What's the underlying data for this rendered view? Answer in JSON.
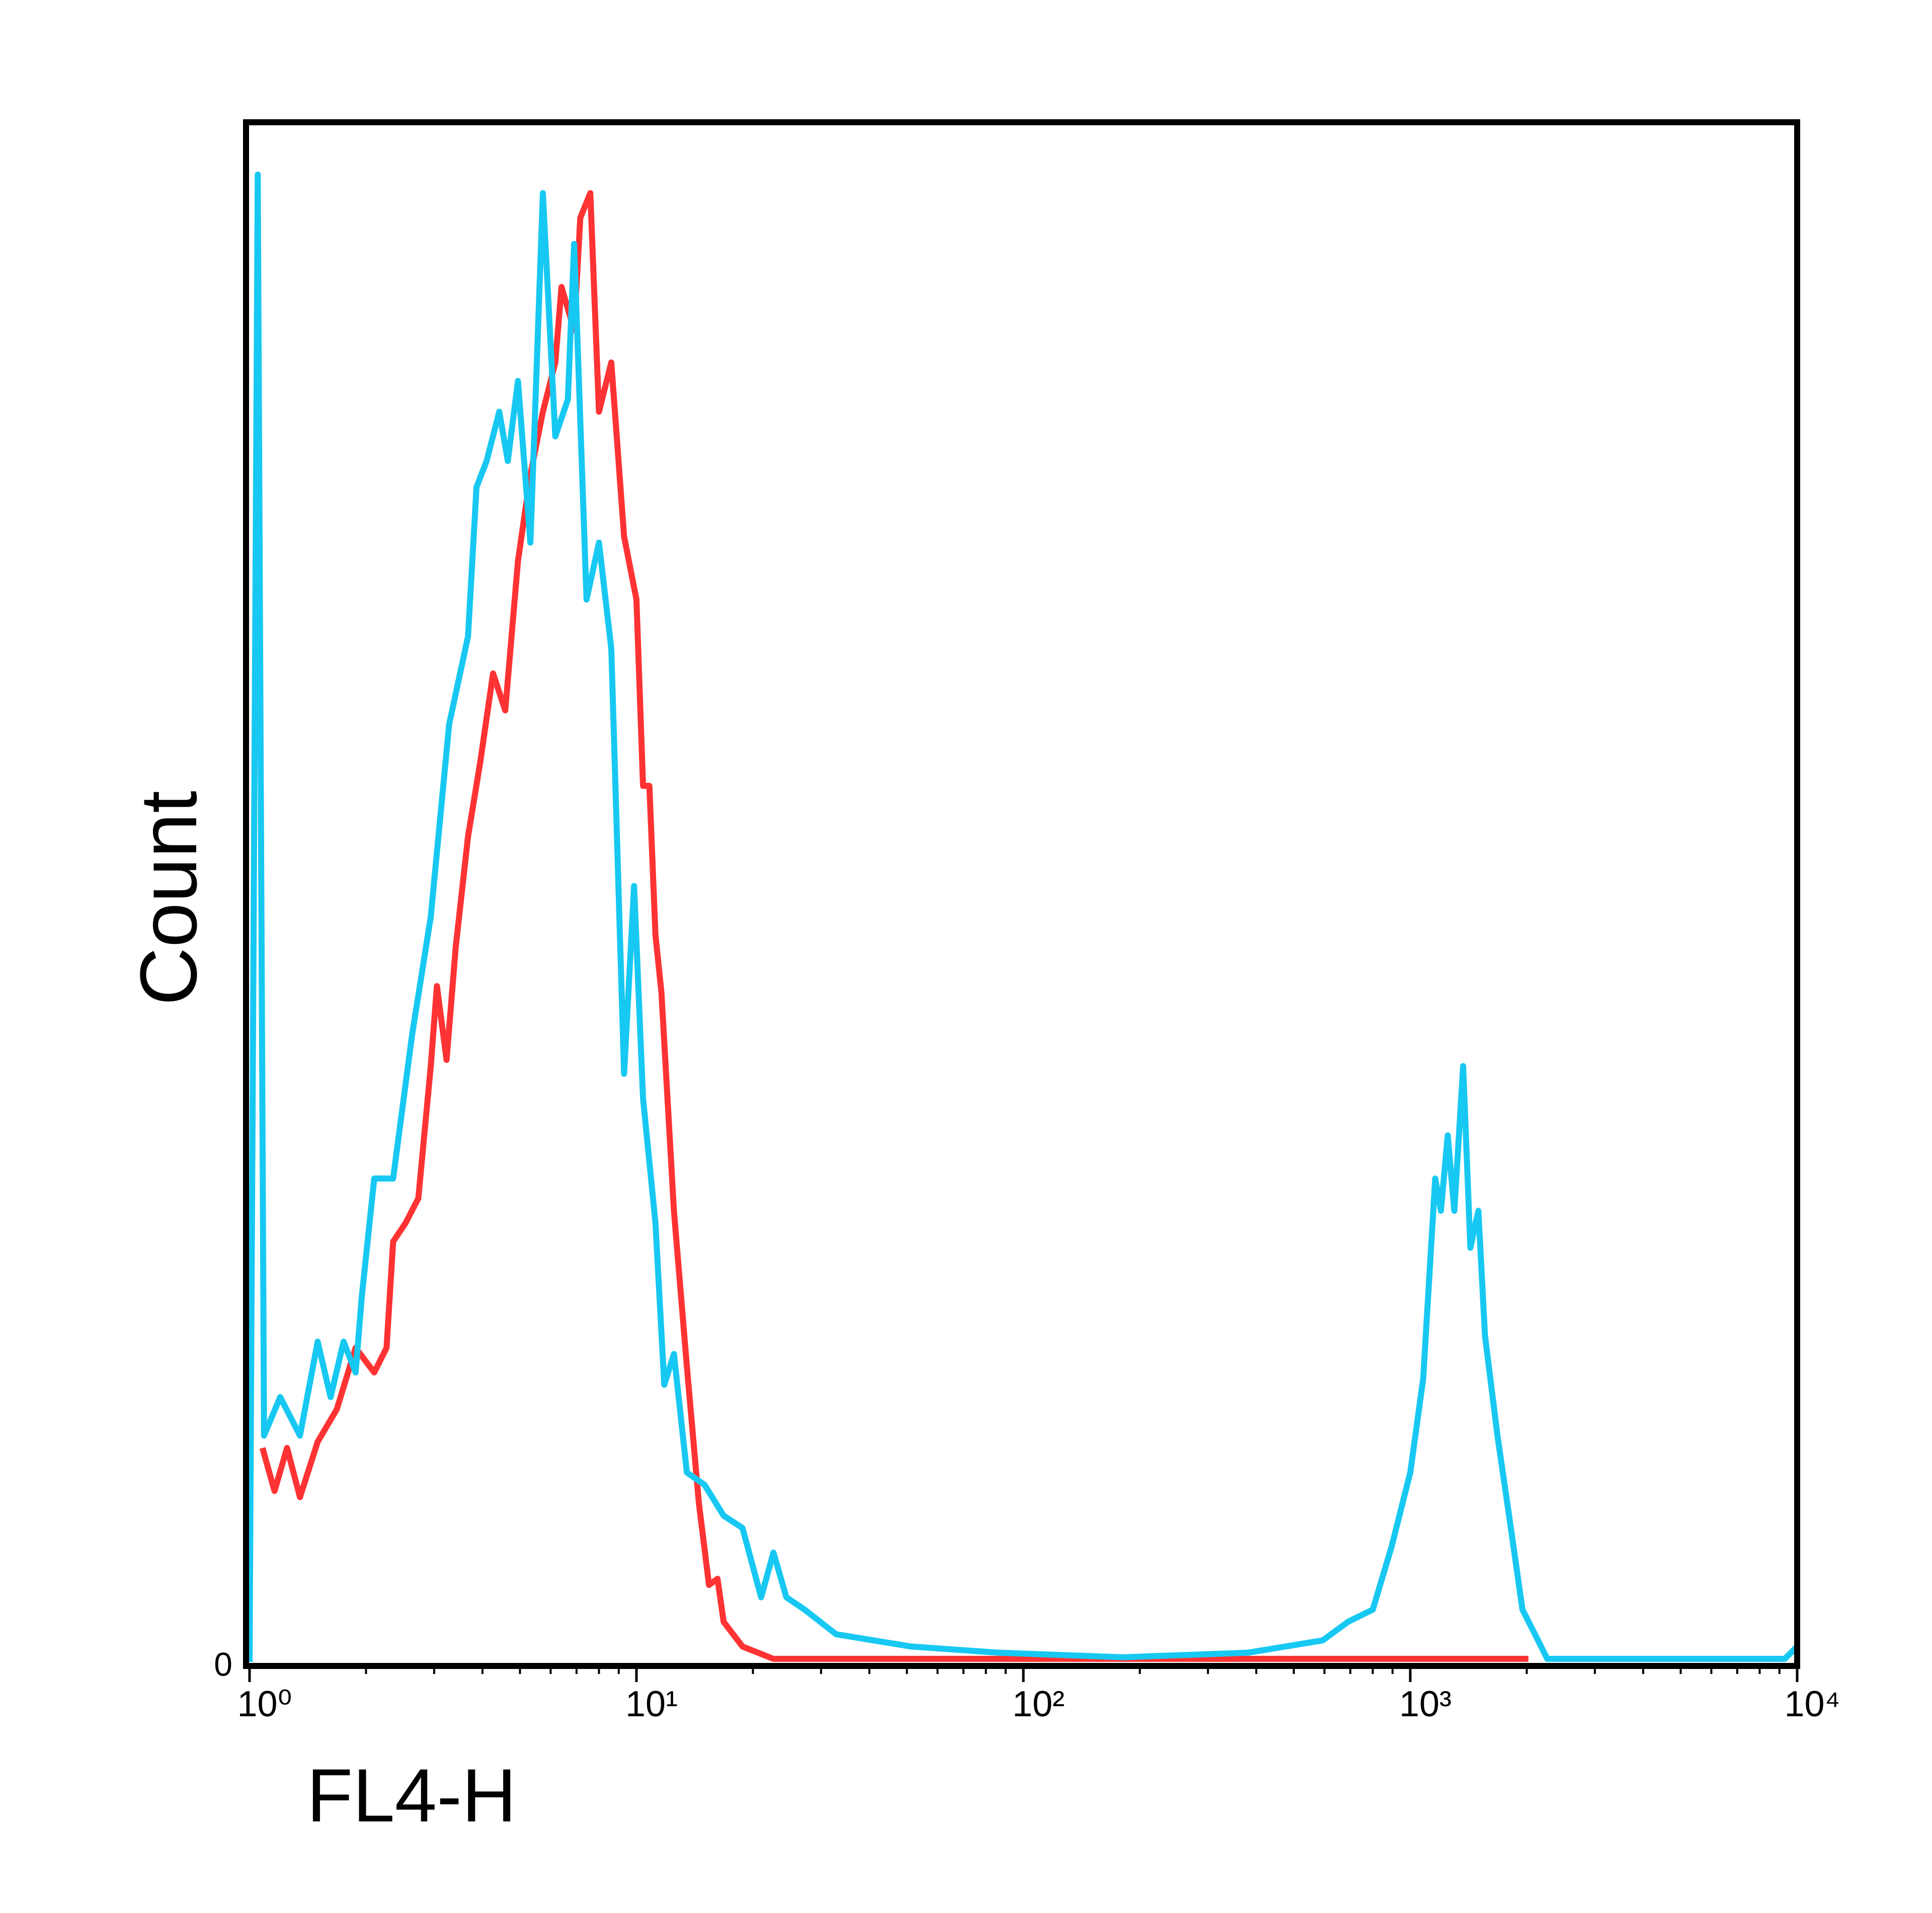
{
  "chart_data": {
    "type": "line",
    "x_label": "FL4-H",
    "y_label": "Count",
    "xscale": "log",
    "xlim": [
      1,
      10000
    ],
    "xticks": [
      {
        "value": 1,
        "label": "10⁰"
      },
      {
        "value": 10,
        "label": "10¹"
      },
      {
        "value": 100,
        "label": "10²"
      },
      {
        "value": 1000,
        "label": "10³"
      },
      {
        "value": 10000,
        "label": "10⁴"
      }
    ],
    "xminorticks": [
      2,
      3,
      4,
      5,
      6,
      7,
      8,
      9,
      20,
      30,
      40,
      50,
      60,
      70,
      80,
      90,
      200,
      300,
      400,
      500,
      600,
      700,
      800,
      900,
      2000,
      3000,
      4000,
      5000,
      6000,
      7000,
      8000,
      9000
    ],
    "ylim": [
      0,
      100
    ],
    "yticks": [
      0
    ],
    "series": [
      {
        "color": "#ff3333",
        "x": [
          1.08,
          1.16,
          1.25,
          1.35,
          1.5,
          1.68,
          1.88,
          2.1,
          2.26,
          2.35,
          2.53,
          2.73,
          2.94,
          3.05,
          3.23,
          3.41,
          3.67,
          3.95,
          4.26,
          4.58,
          4.94,
          5.32,
          5.73,
          6.17,
          6.4,
          6.9,
          7.16,
          7.6,
          8.0,
          8.61,
          9.29,
          10.0,
          10.4,
          10.8,
          11.2,
          11.6,
          12.5,
          13.5,
          14.5,
          15.4,
          16.2,
          16.8,
          18.8,
          22.6,
          41.0,
          2020
        ],
        "values": [
          13.9,
          11.1,
          13.9,
          10.7,
          14.3,
          16.4,
          20.4,
          18.8,
          20.4,
          27.3,
          28.5,
          30.1,
          38.7,
          43.9,
          39.1,
          46.4,
          53.6,
          58.5,
          64.2,
          61.8,
          71.5,
          77.1,
          81.2,
          84.4,
          89.3,
          86.5,
          93.8,
          95.4,
          81.2,
          84.4,
          73.1,
          69.0,
          56.9,
          56.9,
          47.2,
          43.5,
          29.3,
          19.2,
          10.3,
          5.0,
          5.4,
          2.6,
          1.0,
          0.2,
          0.2,
          0.2
        ]
      },
      {
        "color": "#17c8f2",
        "x": [
          1,
          1.05,
          1.09,
          1.2,
          1.35,
          1.5,
          1.62,
          1.75,
          1.88,
          1.95,
          2.1,
          2.35,
          2.63,
          2.94,
          3.28,
          3.67,
          3.86,
          4.1,
          4.42,
          4.65,
          4.94,
          5.32,
          5.73,
          6.17,
          6.65,
          6.9,
          7.43,
          8.0,
          8.61,
          9.29,
          9.86,
          10.4,
          11.2,
          11.8,
          12.5,
          13.5,
          15.0,
          16.8,
          18.8,
          21.0,
          22.6,
          24.4,
          27.2,
          32.8,
          41.0,
          51.3,
          86.1,
          181,
          381,
          594,
          690,
          800,
          895,
          1000,
          1080,
          1160,
          1200,
          1250,
          1300,
          1370,
          1430,
          1500,
          1560,
          1680,
          1810,
          1950,
          2100,
          2260,
          3530,
          9290,
          10000
        ],
        "values": [
          0,
          96.6,
          14.7,
          17.2,
          14.7,
          20.8,
          17.2,
          20.8,
          18.8,
          23.7,
          31.4,
          31.4,
          40.7,
          48.4,
          60.9,
          66.6,
          76.3,
          78.0,
          81.2,
          78.0,
          83.2,
          72.7,
          95.4,
          79.6,
          82.0,
          92.1,
          69.0,
          72.7,
          65.8,
          38.2,
          50.4,
          36.6,
          28.5,
          18.0,
          20.0,
          12.3,
          11.5,
          9.5,
          8.7,
          4.2,
          7.1,
          4.2,
          3.4,
          1.8,
          1.4,
          1.0,
          0.6,
          0.3,
          0.6,
          1.4,
          2.6,
          3.4,
          7.5,
          12.3,
          18.4,
          31.4,
          29.3,
          34.2,
          29.3,
          38.7,
          26.9,
          29.3,
          21.2,
          14.7,
          9.1,
          3.4,
          1.8,
          0.2,
          0.2,
          0.2,
          1.0
        ]
      }
    ]
  }
}
